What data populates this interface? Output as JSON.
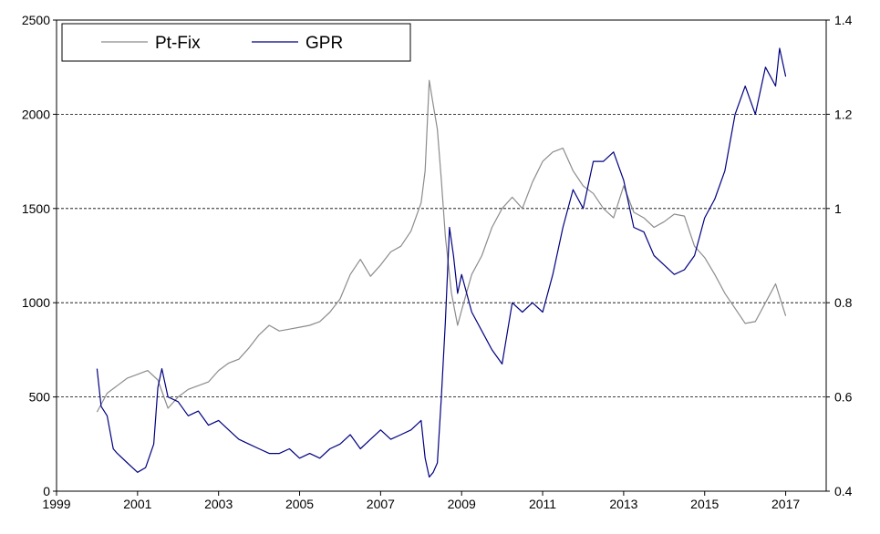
{
  "chart_data": {
    "type": "line",
    "title": "",
    "xlabel": "",
    "ylabel": "",
    "y2label": "",
    "xlim": [
      1999,
      2018
    ],
    "ylim": [
      0,
      2500
    ],
    "y2lim": [
      0.4,
      1.4
    ],
    "x_ticks": [
      1999,
      2001,
      2003,
      2005,
      2007,
      2009,
      2011,
      2013,
      2015,
      2017
    ],
    "x_tick_labels": [
      "1999",
      "2001",
      "2003",
      "2005",
      "2007",
      "2009",
      "2011",
      "2013",
      "2015",
      "2017"
    ],
    "y_ticks": [
      0,
      500,
      1000,
      1500,
      2000,
      2500
    ],
    "y_tick_labels": [
      "0",
      "500",
      "1000",
      "1500",
      "2000",
      "2500"
    ],
    "y2_ticks": [
      0.4,
      0.6,
      0.8,
      1.0,
      1.2,
      1.4
    ],
    "y2_tick_labels": [
      "0.4",
      "0.6",
      "0.8",
      "1",
      "1.2",
      "1.4"
    ],
    "grid": "horizontal dashed at 500, 1000, 1500, 2000",
    "legend": {
      "placement": "top-left",
      "entries": [
        "Pt-Fix",
        "GPR"
      ]
    },
    "series": [
      {
        "name": "Pt-Fix",
        "axis": "left",
        "color": "#8c8c8c",
        "x": [
          2000.0,
          2000.25,
          2000.5,
          2000.75,
          2001.0,
          2001.25,
          2001.5,
          2001.75,
          2002.0,
          2002.25,
          2002.5,
          2002.75,
          2003.0,
          2003.25,
          2003.5,
          2003.75,
          2004.0,
          2004.25,
          2004.5,
          2004.75,
          2005.0,
          2005.25,
          2005.5,
          2005.75,
          2006.0,
          2006.25,
          2006.5,
          2006.75,
          2007.0,
          2007.25,
          2007.5,
          2007.75,
          2008.0,
          2008.1,
          2008.2,
          2008.3,
          2008.4,
          2008.5,
          2008.6,
          2008.75,
          2008.9,
          2009.0,
          2009.25,
          2009.5,
          2009.75,
          2010.0,
          2010.25,
          2010.5,
          2010.75,
          2011.0,
          2011.25,
          2011.5,
          2011.75,
          2012.0,
          2012.25,
          2012.5,
          2012.75,
          2013.0,
          2013.25,
          2013.5,
          2013.75,
          2014.0,
          2014.25,
          2014.5,
          2014.75,
          2015.0,
          2015.25,
          2015.5,
          2015.75,
          2016.0,
          2016.25,
          2016.5,
          2016.75,
          2017.0
        ],
        "values": [
          420,
          520,
          560,
          600,
          620,
          640,
          590,
          440,
          500,
          540,
          560,
          580,
          640,
          680,
          700,
          760,
          830,
          880,
          850,
          860,
          870,
          880,
          900,
          950,
          1020,
          1150,
          1230,
          1140,
          1200,
          1270,
          1300,
          1380,
          1530,
          1700,
          2180,
          2050,
          1920,
          1650,
          1350,
          1050,
          880,
          960,
          1150,
          1250,
          1400,
          1500,
          1560,
          1500,
          1640,
          1750,
          1800,
          1820,
          1700,
          1620,
          1580,
          1500,
          1450,
          1620,
          1480,
          1450,
          1400,
          1430,
          1470,
          1460,
          1300,
          1240,
          1150,
          1050,
          970,
          890,
          900,
          1000,
          1100,
          930
        ]
      },
      {
        "name": "GPR",
        "axis": "right",
        "color": "#000080",
        "x": [
          2000.0,
          2000.1,
          2000.25,
          2000.4,
          2000.5,
          2000.75,
          2001.0,
          2001.2,
          2001.4,
          2001.5,
          2001.6,
          2001.75,
          2002.0,
          2002.25,
          2002.5,
          2002.75,
          2003.0,
          2003.25,
          2003.5,
          2003.75,
          2004.0,
          2004.25,
          2004.5,
          2004.75,
          2005.0,
          2005.25,
          2005.5,
          2005.75,
          2006.0,
          2006.25,
          2006.5,
          2006.75,
          2007.0,
          2007.25,
          2007.5,
          2007.75,
          2008.0,
          2008.1,
          2008.2,
          2008.3,
          2008.4,
          2008.5,
          2008.6,
          2008.7,
          2008.8,
          2008.9,
          2009.0,
          2009.25,
          2009.5,
          2009.75,
          2010.0,
          2010.25,
          2010.5,
          2010.75,
          2011.0,
          2011.25,
          2011.5,
          2011.75,
          2012.0,
          2012.25,
          2012.5,
          2012.75,
          2013.0,
          2013.25,
          2013.5,
          2013.75,
          2014.0,
          2014.25,
          2014.5,
          2014.75,
          2015.0,
          2015.25,
          2015.5,
          2015.75,
          2016.0,
          2016.25,
          2016.5,
          2016.75,
          2016.85,
          2017.0
        ],
        "values": [
          0.66,
          0.58,
          0.56,
          0.49,
          0.48,
          0.46,
          0.44,
          0.45,
          0.5,
          0.62,
          0.66,
          0.6,
          0.59,
          0.56,
          0.57,
          0.54,
          0.55,
          0.53,
          0.51,
          0.5,
          0.49,
          0.48,
          0.48,
          0.49,
          0.47,
          0.48,
          0.47,
          0.49,
          0.5,
          0.52,
          0.49,
          0.51,
          0.53,
          0.51,
          0.52,
          0.53,
          0.55,
          0.47,
          0.43,
          0.44,
          0.46,
          0.6,
          0.76,
          0.96,
          0.9,
          0.82,
          0.86,
          0.78,
          0.74,
          0.7,
          0.67,
          0.8,
          0.78,
          0.8,
          0.78,
          0.86,
          0.96,
          1.04,
          1.0,
          1.1,
          1.1,
          1.12,
          1.06,
          0.96,
          0.95,
          0.9,
          0.88,
          0.86,
          0.87,
          0.9,
          0.98,
          1.02,
          1.08,
          1.2,
          1.26,
          1.2,
          1.3,
          1.26,
          1.34,
          1.28
        ]
      }
    ]
  }
}
